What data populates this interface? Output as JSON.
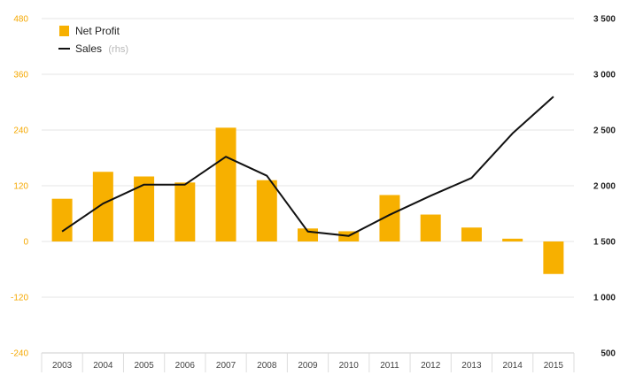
{
  "colors": {
    "bar": "#f7b000",
    "line": "#111111",
    "grid": "#e6e6e6",
    "left_axis_text": "#f5a800",
    "right_axis_text": "#222222"
  },
  "chart_data": {
    "type": "bar",
    "categories": [
      "2003",
      "2004",
      "2005",
      "2006",
      "2007",
      "2008",
      "2009",
      "2010",
      "2011",
      "2012",
      "2013",
      "2014",
      "2015"
    ],
    "series": [
      {
        "name": "Net Profit",
        "kind": "bar",
        "axis": "left",
        "values": [
          92,
          150,
          140,
          127,
          245,
          132,
          28,
          22,
          100,
          58,
          30,
          6,
          -70
        ]
      },
      {
        "name": "Sales",
        "name_suffix": "(rhs)",
        "kind": "line",
        "axis": "right",
        "values": [
          1590,
          1840,
          2010,
          2010,
          2260,
          2090,
          1590,
          1550,
          1740,
          1910,
          2070,
          2470,
          2800
        ]
      }
    ],
    "left_axis": {
      "ylim": [
        -240,
        480
      ],
      "ticks": [
        480,
        360,
        240,
        120,
        0,
        -120,
        -240
      ],
      "tick_labels": [
        "480",
        "360",
        "240",
        "120",
        "0",
        "-120",
        "-240"
      ]
    },
    "right_axis": {
      "ylim": [
        500,
        3500
      ],
      "ticks": [
        3500,
        3000,
        2500,
        2000,
        1500,
        1000,
        500
      ],
      "tick_labels": [
        "3 500",
        "3 000",
        "2 500",
        "2 000",
        "1 500",
        "1 000",
        "500"
      ]
    },
    "grid": true,
    "legend_position": "top-left"
  }
}
